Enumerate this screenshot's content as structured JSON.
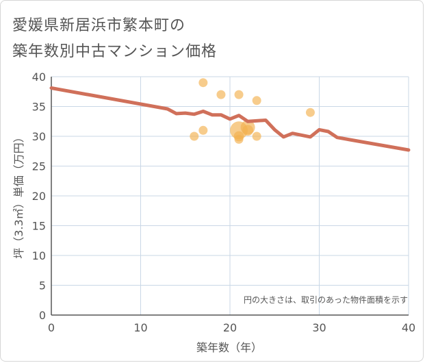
{
  "title_lines": [
    "愛媛県新居浜市繁本町の",
    "築年数別中古マンション価格"
  ],
  "chart_data": {
    "type": "scatter",
    "title": "愛媛県新居浜市繁本町の築年数別中古マンション価格",
    "xlabel": "築年数（年）",
    "ylabel": "坪（3.3㎡）単価（万円）",
    "xlim": [
      0,
      40
    ],
    "ylim": [
      0,
      40
    ],
    "x_ticks": [
      0,
      10,
      20,
      30,
      40
    ],
    "y_ticks": [
      0,
      5,
      10,
      15,
      20,
      25,
      30,
      35,
      40
    ],
    "grid": true,
    "note": "円の大きさは、取引のあった物件面積を示す",
    "points": [
      {
        "x": 16,
        "y": 30,
        "size": 1
      },
      {
        "x": 17,
        "y": 39,
        "size": 1
      },
      {
        "x": 17,
        "y": 31,
        "size": 1
      },
      {
        "x": 19,
        "y": 37,
        "size": 1
      },
      {
        "x": 21,
        "y": 37,
        "size": 1
      },
      {
        "x": 21,
        "y": 31,
        "size": 4
      },
      {
        "x": 21,
        "y": 30,
        "size": 1.3
      },
      {
        "x": 21,
        "y": 29.5,
        "size": 1
      },
      {
        "x": 22,
        "y": 31.5,
        "size": 2.6
      },
      {
        "x": 22,
        "y": 31,
        "size": 1.5
      },
      {
        "x": 23,
        "y": 36,
        "size": 1
      },
      {
        "x": 23,
        "y": 30,
        "size": 1
      },
      {
        "x": 29,
        "y": 34,
        "size": 1
      }
    ],
    "trend_line": {
      "x": [
        0,
        13,
        14,
        15,
        16,
        17,
        18,
        19,
        20,
        21,
        22,
        23,
        24,
        25,
        26,
        27,
        28,
        29,
        30,
        31,
        32,
        40
      ],
      "y": [
        38.1,
        34.6,
        33.8,
        33.9,
        33.7,
        34.2,
        33.6,
        33.6,
        32.9,
        33.5,
        32.5,
        32.6,
        32.7,
        31.1,
        29.9,
        30.5,
        30.2,
        29.9,
        31.1,
        30.8,
        29.8,
        27.7
      ]
    },
    "colors": {
      "points": "#f2b04e",
      "trend_line": "#d0705a",
      "grid": "#c9d7e6",
      "axis": "#555555"
    }
  }
}
